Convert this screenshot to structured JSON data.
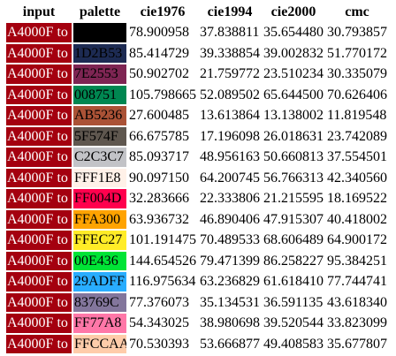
{
  "headers": [
    "input",
    "palette",
    "cie1976",
    "cie1994",
    "cie2000",
    "cmc"
  ],
  "input_color": "#A4000F",
  "rows": [
    {
      "input": "A4000F to",
      "palette": "",
      "palette_color": "#000000",
      "palette_text": "#ffffff",
      "cie1976": "78.900958",
      "cie1994": "37.838811",
      "cie2000": "35.654480",
      "cmc": "30.793857"
    },
    {
      "input": "A4000F to",
      "palette": "1D2B53",
      "palette_color": "#1D2B53",
      "palette_text": "#000000",
      "cie1976": "85.414729",
      "cie1994": "39.338854",
      "cie2000": "39.002832",
      "cmc": "51.770172"
    },
    {
      "input": "A4000F to",
      "palette": "7E2553",
      "palette_color": "#7E2553",
      "palette_text": "#000000",
      "cie1976": "50.902702",
      "cie1994": "21.759772",
      "cie2000": "23.510234",
      "cmc": "30.335079"
    },
    {
      "input": "A4000F to",
      "palette": "008751",
      "palette_color": "#008751",
      "palette_text": "#000000",
      "cie1976": "105.798665",
      "cie1994": "52.089502",
      "cie2000": "65.644500",
      "cmc": "70.626406"
    },
    {
      "input": "A4000F to",
      "palette": "AB5236",
      "palette_color": "#AB5236",
      "palette_text": "#000000",
      "cie1976": "27.600485",
      "cie1994": "13.613864",
      "cie2000": "13.138002",
      "cmc": "11.819548"
    },
    {
      "input": "A4000F to",
      "palette": "5F574F",
      "palette_color": "#5F574F",
      "palette_text": "#000000",
      "cie1976": "66.675785",
      "cie1994": "17.196098",
      "cie2000": "26.018631",
      "cmc": "23.742089"
    },
    {
      "input": "A4000F to",
      "palette": "C2C3C7",
      "palette_color": "#C2C3C7",
      "palette_text": "#000000",
      "cie1976": "85.093717",
      "cie1994": "48.956163",
      "cie2000": "50.660813",
      "cmc": "37.554501"
    },
    {
      "input": "A4000F to",
      "palette": "FFF1E8",
      "palette_color": "#FFF1E8",
      "palette_text": "#000000",
      "cie1976": "90.097150",
      "cie1994": "64.200745",
      "cie2000": "56.766313",
      "cmc": "42.340560"
    },
    {
      "input": "A4000F to",
      "palette": "FF004D",
      "palette_color": "#FF004D",
      "palette_text": "#000000",
      "cie1976": "32.283666",
      "cie1994": "22.333806",
      "cie2000": "21.215595",
      "cmc": "18.169522"
    },
    {
      "input": "A4000F to",
      "palette": "FFA300",
      "palette_color": "#FFA300",
      "palette_text": "#000000",
      "cie1976": "63.936732",
      "cie1994": "46.890406",
      "cie2000": "47.915307",
      "cmc": "40.418002"
    },
    {
      "input": "A4000F to",
      "palette": "FFEC27",
      "palette_color": "#FFEC27",
      "palette_text": "#000000",
      "cie1976": "101.191475",
      "cie1994": "70.489533",
      "cie2000": "68.606489",
      "cmc": "64.900172"
    },
    {
      "input": "A4000F to",
      "palette": "00E436",
      "palette_color": "#00E436",
      "palette_text": "#000000",
      "cie1976": "144.654526",
      "cie1994": "79.471399",
      "cie2000": "86.258227",
      "cmc": "95.384251"
    },
    {
      "input": "A4000F to",
      "palette": "29ADFF",
      "palette_color": "#29ADFF",
      "palette_text": "#000000",
      "cie1976": "116.975634",
      "cie1994": "63.236829",
      "cie2000": "61.618410",
      "cmc": "77.744741"
    },
    {
      "input": "A4000F to",
      "palette": "83769C",
      "palette_color": "#83769C",
      "palette_text": "#000000",
      "cie1976": "77.376073",
      "cie1994": "35.134531",
      "cie2000": "36.591135",
      "cmc": "43.618340"
    },
    {
      "input": "A4000F to",
      "palette": "FF77A8",
      "palette_color": "#FF77A8",
      "palette_text": "#000000",
      "cie1976": "54.343025",
      "cie1994": "38.980698",
      "cie2000": "39.520544",
      "cmc": "33.823099"
    },
    {
      "input": "A4000F to",
      "palette": "FFCCAA",
      "palette_color": "#FFCCAA",
      "palette_text": "#000000",
      "cie1976": "70.530393",
      "cie1994": "53.666877",
      "cie2000": "49.408583",
      "cmc": "35.677807"
    }
  ]
}
